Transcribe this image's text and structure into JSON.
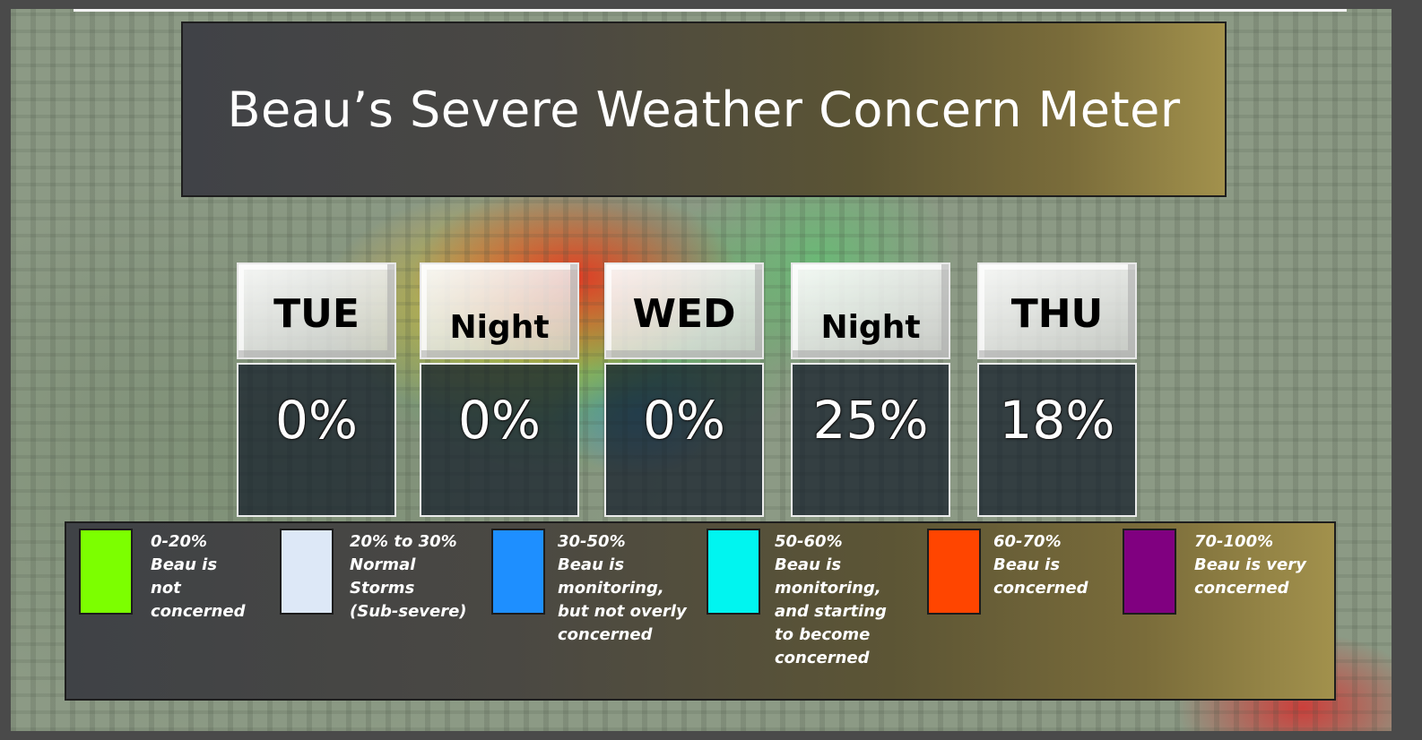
{
  "title": "Beau’s Severe Weather Concern Meter",
  "days": [
    {
      "label": "TUE",
      "value": "0%"
    },
    {
      "label": "Night",
      "value": "0%"
    },
    {
      "label": "WED",
      "value": "0%"
    },
    {
      "label": "Night",
      "value": "25%"
    },
    {
      "label": "THU",
      "value": "18%"
    }
  ],
  "legend": [
    {
      "color": "#7cff00",
      "lines": [
        "0-20%",
        "Beau is",
        "not",
        "concerned"
      ]
    },
    {
      "color": "#dde8f7",
      "lines": [
        "20% to 30%",
        "Normal",
        "Storms",
        "(Sub-severe)"
      ]
    },
    {
      "color": "#1e8fff",
      "lines": [
        "30-50%",
        "Beau is",
        "monitoring,",
        "but not overly",
        "concerned"
      ]
    },
    {
      "color": "#00f5f0",
      "lines": [
        "50-60%",
        "Beau is",
        "monitoring,",
        "and starting",
        "to become",
        "concerned"
      ]
    },
    {
      "color": "#ff4500",
      "lines": [
        "60-70%",
        "Beau is",
        "concerned"
      ]
    },
    {
      "color": "#800080",
      "lines": [
        "70-100%",
        "Beau is very",
        "concerned"
      ]
    }
  ]
}
